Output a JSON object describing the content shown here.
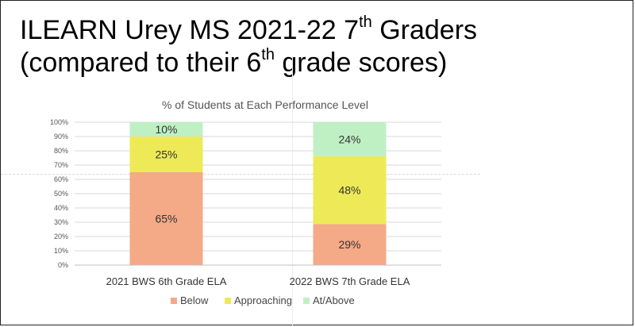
{
  "slide": {
    "title_line1": "ILEARN Urey MS 2021-22 7",
    "title_line1_sup": "th",
    "title_line1_end": " Graders",
    "title_line2": "(compared to their 6",
    "title_line2_sup": "th",
    "title_line2_end": " grade scores)"
  },
  "chart_data": {
    "type": "bar",
    "stacked": true,
    "title": "% of Students at Each Performance Level",
    "categories": [
      "2021 BWS 6th Grade ELA",
      "2022 BWS 7th Grade ELA"
    ],
    "series": [
      {
        "name": "Below",
        "values": [
          65,
          29
        ],
        "labels": [
          "65%",
          "29%"
        ],
        "color": "#f4a987"
      },
      {
        "name": "Approaching",
        "values": [
          25,
          48
        ],
        "labels": [
          "25%",
          "48%"
        ],
        "color": "#eeea57"
      },
      {
        "name": "At/Above",
        "values": [
          10,
          24
        ],
        "labels": [
          "10%",
          "24%"
        ],
        "color": "#bff0c4"
      }
    ],
    "y_ticks": [
      "0%",
      "10%",
      "20%",
      "30%",
      "40%",
      "50%",
      "60%",
      "70%",
      "80%",
      "90%",
      "100%"
    ],
    "ylim": [
      0,
      100
    ],
    "grid": true,
    "legend_position": "bottom"
  }
}
